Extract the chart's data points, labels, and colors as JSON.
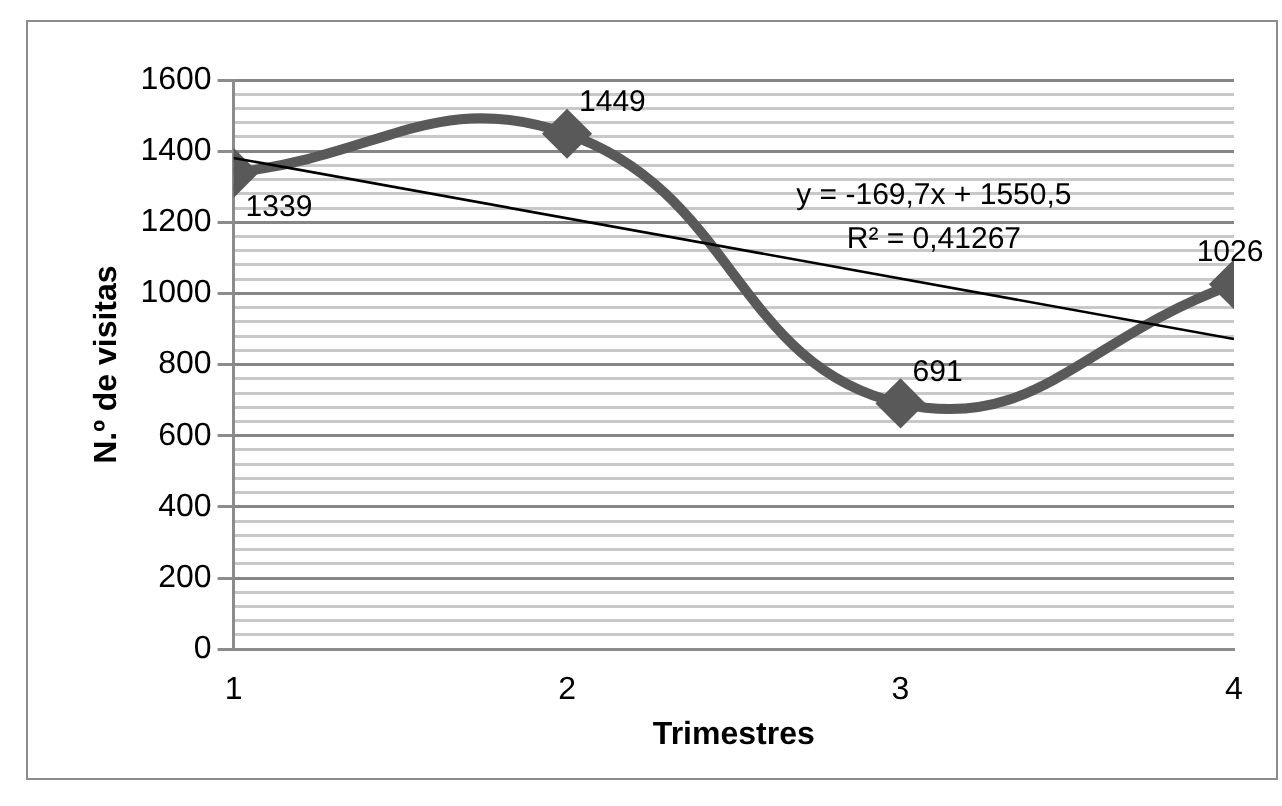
{
  "chart_data": {
    "type": "line",
    "xlabel": "Trimestres",
    "ylabel": "N.º de visitas",
    "x": [
      1,
      2,
      3,
      4
    ],
    "xlim": [
      1,
      4
    ],
    "xticks": [
      1,
      2,
      3,
      4
    ],
    "ylim": [
      0,
      1600
    ],
    "yticks": [
      0,
      {
        "value": 40,
        "label": null
      },
      {
        "value": 80,
        "label": null
      },
      {
        "value": 120,
        "label": null
      },
      {
        "value": 160,
        "label": null
      },
      200,
      {
        "value": 240,
        "label": null
      },
      {
        "value": 280,
        "label": null
      },
      {
        "value": 320,
        "label": null
      },
      {
        "value": 360,
        "label": null
      },
      400,
      {
        "value": 440,
        "label": null
      },
      {
        "value": 480,
        "label": null
      },
      {
        "value": 520,
        "label": null
      },
      {
        "value": 560,
        "label": null
      },
      600,
      {
        "value": 640,
        "label": null
      },
      {
        "value": 680,
        "label": null
      },
      {
        "value": 720,
        "label": null
      },
      {
        "value": 760,
        "label": null
      },
      800,
      {
        "value": 840,
        "label": null
      },
      {
        "value": 880,
        "label": null
      },
      {
        "value": 920,
        "label": null
      },
      {
        "value": 960,
        "label": null
      },
      1000,
      {
        "value": 1040,
        "label": null
      },
      {
        "value": 1080,
        "label": null
      },
      {
        "value": 1120,
        "label": null
      },
      {
        "value": 1160,
        "label": null
      },
      1200,
      {
        "value": 1240,
        "label": null
      },
      {
        "value": 1280,
        "label": null
      },
      {
        "value": 1320,
        "label": null
      },
      {
        "value": 1360,
        "label": null
      },
      1400,
      {
        "value": 1440,
        "label": null
      },
      {
        "value": 1480,
        "label": null
      },
      {
        "value": 1520,
        "label": null
      },
      {
        "value": 1560,
        "label": null
      },
      1600
    ],
    "grid": "y",
    "legend": false,
    "marker": "diamond",
    "series": [
      {
        "color": "#595959",
        "values": [
          1339,
          1449,
          691,
          1026
        ],
        "value_labels": [
          "1339",
          "1449",
          "691",
          "1026"
        ]
      },
      {
        "type": "line",
        "color": "#000000",
        "marker": "none",
        "x": [
          1,
          4
        ],
        "values": [
          1381,
          872
        ]
      }
    ],
    "annotations": [
      "y = -169,7x + 1550,5",
      "R² = 0,41267"
    ]
  }
}
